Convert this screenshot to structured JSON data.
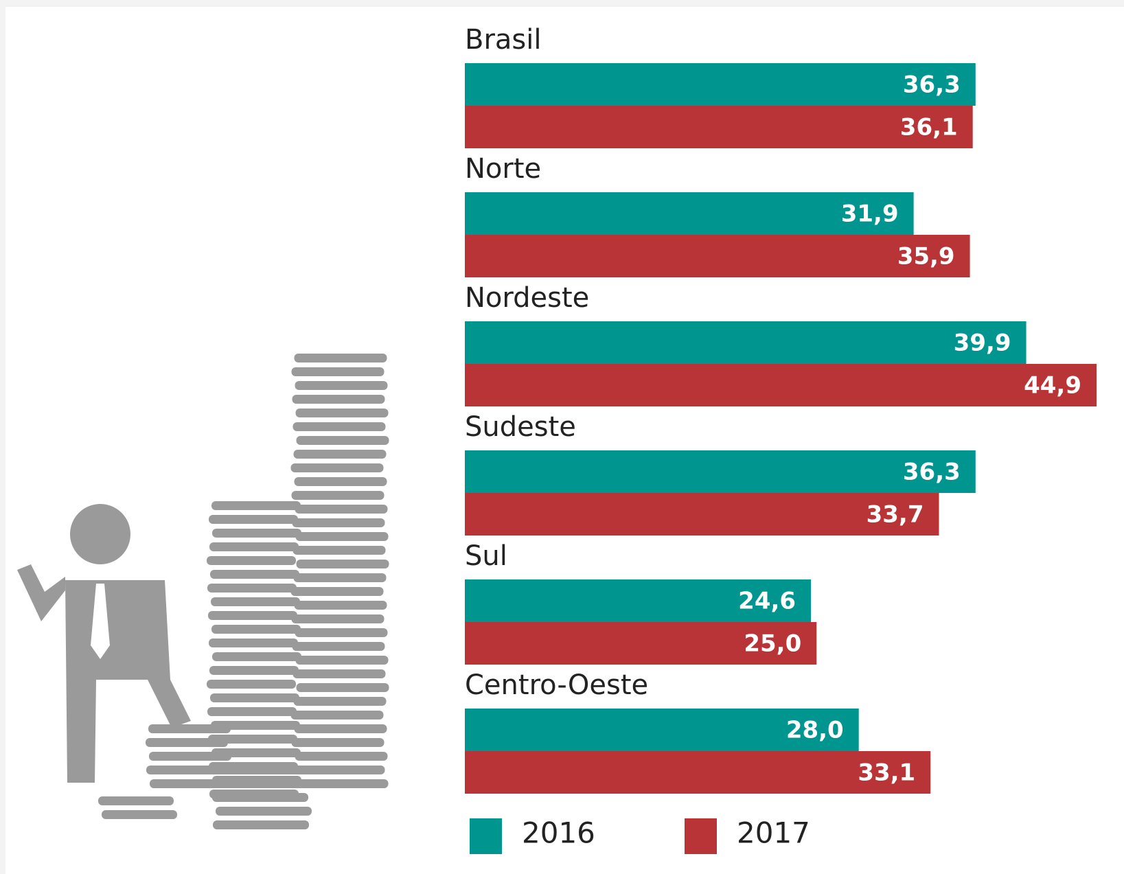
{
  "chart_data": {
    "type": "bar",
    "orientation": "horizontal",
    "categories": [
      "Brasil",
      "Norte",
      "Nordeste",
      "Sudeste",
      "Sul",
      "Centro-Oeste"
    ],
    "series": [
      {
        "name": "2016",
        "color": "#00968f",
        "values": [
          36.3,
          31.9,
          39.9,
          36.3,
          24.6,
          28.0
        ],
        "value_labels": [
          "36,3",
          "31,9",
          "39,9",
          "36,3",
          "24,6",
          "28,0"
        ]
      },
      {
        "name": "2017",
        "color": "#b93437",
        "values": [
          36.1,
          35.9,
          44.9,
          33.7,
          25.0,
          33.1
        ],
        "value_labels": [
          "36,1",
          "35,9",
          "44,9",
          "33,7",
          "25,0",
          "33,1"
        ]
      }
    ],
    "legend": "bottom"
  }
}
